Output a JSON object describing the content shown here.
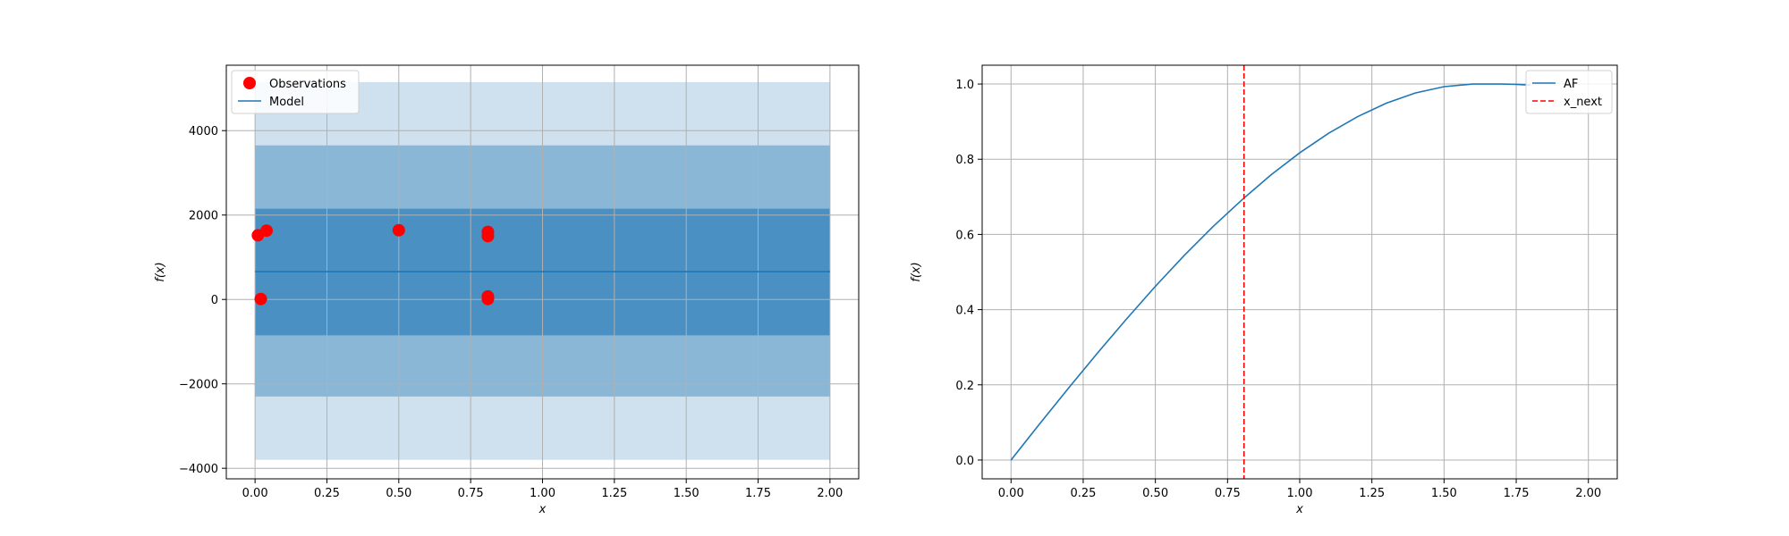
{
  "chart_data": [
    {
      "type": "scatter",
      "xlabel": "x",
      "ylabel": "f(x)",
      "xlim": [
        -0.1,
        2.1
      ],
      "ylim": [
        -4250,
        5550
      ],
      "xticks": [
        0.0,
        0.25,
        0.5,
        0.75,
        1.0,
        1.25,
        1.5,
        1.75,
        2.0
      ],
      "xtick_labels": [
        "0.00",
        "0.25",
        "0.50",
        "0.75",
        "1.00",
        "1.25",
        "1.50",
        "1.75",
        "2.00"
      ],
      "yticks": [
        -4000,
        -2000,
        0,
        2000,
        4000
      ],
      "ytick_labels": [
        "−4000",
        "−2000",
        "0",
        "2000",
        "4000"
      ],
      "grid": true,
      "legend_position": "top-left",
      "bands": [
        {
          "lower": -3800,
          "upper": 5150,
          "color": "#cfe1ee"
        },
        {
          "lower": -2300,
          "upper": 3650,
          "color": "#8bb7d7"
        },
        {
          "lower": -850,
          "upper": 2150,
          "color": "#4a90c3"
        }
      ],
      "series": [
        {
          "name": "Observations",
          "kind": "scatter",
          "color": "#ff0000",
          "x": [
            0.01,
            0.04,
            0.02,
            0.5,
            0.81,
            0.81,
            0.81,
            0.81
          ],
          "y": [
            1520,
            1630,
            10,
            1640,
            1600,
            1500,
            70,
            10
          ]
        },
        {
          "name": "Model",
          "kind": "line",
          "color": "#1f77b4",
          "x": [
            0.0,
            2.0
          ],
          "y": [
            660,
            660
          ]
        }
      ]
    },
    {
      "type": "line",
      "xlabel": "x",
      "ylabel": "f(x)",
      "xlim": [
        -0.1,
        2.1
      ],
      "ylim": [
        -0.05,
        1.05
      ],
      "xticks": [
        0.0,
        0.25,
        0.5,
        0.75,
        1.0,
        1.25,
        1.5,
        1.75,
        2.0
      ],
      "xtick_labels": [
        "0.00",
        "0.25",
        "0.50",
        "0.75",
        "1.00",
        "1.25",
        "1.50",
        "1.75",
        "2.00"
      ],
      "yticks": [
        0.0,
        0.2,
        0.4,
        0.6,
        0.8,
        1.0
      ],
      "ytick_labels": [
        "0.0",
        "0.2",
        "0.4",
        "0.6",
        "0.8",
        "1.0"
      ],
      "grid": true,
      "legend_position": "top-right",
      "series": [
        {
          "name": "AF",
          "kind": "line",
          "color": "#1f77b4",
          "x": [
            0.0,
            0.1,
            0.2,
            0.3,
            0.4,
            0.5,
            0.6,
            0.7,
            0.8,
            0.9,
            1.0,
            1.1,
            1.2,
            1.3,
            1.4,
            1.5,
            1.6,
            1.7,
            1.75,
            1.8
          ],
          "y": [
            0.0,
            0.097,
            0.192,
            0.285,
            0.375,
            0.462,
            0.544,
            0.621,
            0.692,
            0.758,
            0.817,
            0.869,
            0.913,
            0.949,
            0.976,
            0.993,
            1.0,
            1.0,
            0.999,
            0.997
          ]
        },
        {
          "name": "x_next",
          "kind": "vline",
          "color": "#ff0000",
          "dash": true,
          "x": 0.807
        }
      ]
    }
  ]
}
